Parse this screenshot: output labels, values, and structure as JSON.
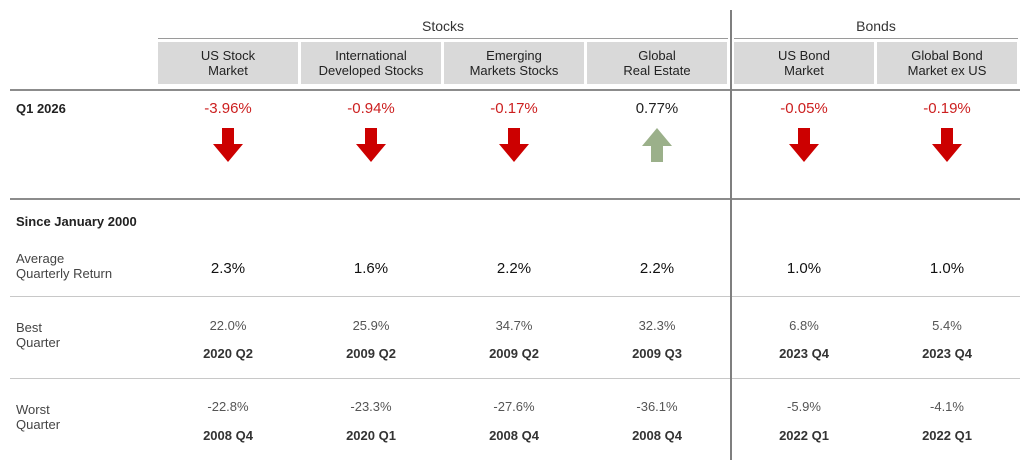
{
  "groups": {
    "stocks": "Stocks",
    "bonds": "Bonds"
  },
  "columns": [
    {
      "line1": "US Stock",
      "line2": "Market"
    },
    {
      "line1": "International",
      "line2": "Developed Stocks"
    },
    {
      "line1": "Emerging",
      "line2": "Markets Stocks"
    },
    {
      "line1": "Global",
      "line2": "Real Estate"
    },
    {
      "line1": "US Bond",
      "line2": "Market"
    },
    {
      "line1": "Global Bond",
      "line2": "Market ex US"
    }
  ],
  "quarter": {
    "label": "Q1 2026",
    "returns": [
      "-3.96%",
      "-0.94%",
      "-0.17%",
      "0.77%",
      "-0.05%",
      "-0.19%"
    ],
    "directions": [
      "down",
      "down",
      "down",
      "up",
      "down",
      "down"
    ],
    "down_color": "#cc0000",
    "up_color": "#9bb08a"
  },
  "since": {
    "title": "Since January 2000",
    "average": {
      "label_line1": "Average",
      "label_line2": "Quarterly Return",
      "values": [
        "2.3%",
        "1.6%",
        "2.2%",
        "2.2%",
        "1.0%",
        "1.0%"
      ]
    },
    "best": {
      "label_line1": "Best",
      "label_line2": "Quarter",
      "values": [
        "22.0%",
        "25.9%",
        "34.7%",
        "32.3%",
        "6.8%",
        "5.4%"
      ],
      "quarters": [
        "2020 Q2",
        "2009 Q2",
        "2009 Q2",
        "2009 Q3",
        "2023 Q4",
        "2023 Q4"
      ]
    },
    "worst": {
      "label_line1": "Worst",
      "label_line2": "Quarter",
      "values": [
        "-22.8%",
        "-23.3%",
        "-27.6%",
        "-36.1%",
        "-5.9%",
        "-4.1%"
      ],
      "quarters": [
        "2008 Q4",
        "2020 Q1",
        "2008 Q4",
        "2008 Q4",
        "2022 Q1",
        "2022 Q1"
      ]
    }
  }
}
